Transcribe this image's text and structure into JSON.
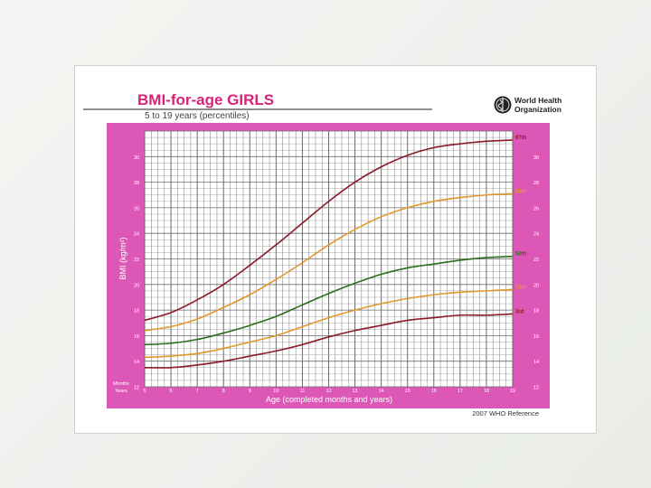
{
  "header": {
    "title": "BMI-for-age  GIRLS",
    "subtitle": "5 to 19 years (percentiles)",
    "org_line1": "World Health",
    "org_line2": "Organization",
    "logo_icon": "who-emblem-icon"
  },
  "footer": {
    "reference": "2007 WHO Reference"
  },
  "colors": {
    "panel": "#dd58b6",
    "title": "#d8237a",
    "title_underline": "#4a4a4a",
    "grid": "#6b6b6b",
    "p97": "#8b1a28",
    "p85": "#e0982a",
    "p50": "#2a6e1c",
    "p15": "#e0982a",
    "p3": "#8b1a28"
  },
  "chart_data": {
    "type": "line",
    "xlabel": "Age (completed months and years)",
    "ylabel": "BMI (kg/m²)",
    "row_labels": [
      "Months",
      "Years"
    ],
    "xlim": [
      5,
      19
    ],
    "ylim": [
      12,
      32
    ],
    "x_ticks_years": [
      "5",
      "6",
      "7",
      "8",
      "9",
      "10",
      "11",
      "12",
      "13",
      "14",
      "15",
      "16",
      "17",
      "18",
      "19"
    ],
    "month_tick_labels": [
      "3",
      "6",
      "9"
    ],
    "y_ticks": [
      "12",
      "14",
      "16",
      "18",
      "20",
      "22",
      "24",
      "26",
      "28",
      "30"
    ],
    "x": [
      5,
      6,
      7,
      8,
      9,
      10,
      11,
      12,
      13,
      14,
      15,
      16,
      17,
      18,
      19
    ],
    "series": [
      {
        "name": "97th",
        "color": "#8b1a28",
        "values": [
          17.2,
          17.8,
          18.8,
          20.0,
          21.5,
          23.1,
          24.8,
          26.5,
          28.0,
          29.2,
          30.1,
          30.7,
          31.0,
          31.2,
          31.3
        ]
      },
      {
        "name": "85th",
        "color": "#e0982a",
        "values": [
          16.4,
          16.7,
          17.3,
          18.2,
          19.2,
          20.4,
          21.7,
          23.1,
          24.3,
          25.3,
          26.0,
          26.5,
          26.8,
          27.0,
          27.1
        ]
      },
      {
        "name": "50th",
        "color": "#2a6e1c",
        "values": [
          15.3,
          15.4,
          15.7,
          16.2,
          16.8,
          17.5,
          18.4,
          19.3,
          20.1,
          20.8,
          21.3,
          21.6,
          21.9,
          22.1,
          22.2
        ]
      },
      {
        "name": "15th",
        "color": "#e0982a",
        "values": [
          14.3,
          14.4,
          14.6,
          15.0,
          15.5,
          16.0,
          16.7,
          17.4,
          18.0,
          18.5,
          18.9,
          19.2,
          19.4,
          19.5,
          19.6
        ]
      },
      {
        "name": "3rd",
        "color": "#8b1a28",
        "values": [
          13.5,
          13.5,
          13.7,
          14.0,
          14.4,
          14.8,
          15.3,
          15.9,
          16.4,
          16.8,
          17.2,
          17.4,
          17.6,
          17.6,
          17.7
        ]
      }
    ]
  }
}
